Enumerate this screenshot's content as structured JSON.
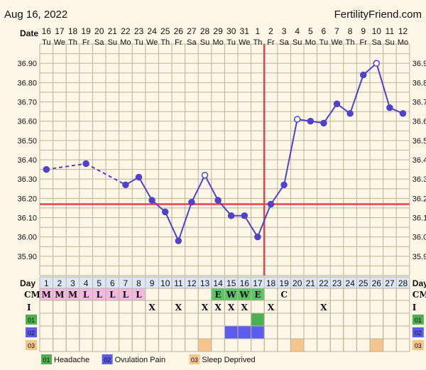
{
  "header": {
    "date": "Aug 16, 2022",
    "site": "FertilityFriend.com"
  },
  "row_labels": {
    "date": "Date",
    "day": "Day",
    "cm": "CM",
    "intercourse": "I"
  },
  "symptom_codes": [
    "01",
    "02",
    "03"
  ],
  "legend": [
    {
      "code": "01",
      "label": "Headache",
      "color": "#4caf50"
    },
    {
      "code": "02",
      "label": "Ovulation Pain",
      "color": "#5b5bf0"
    },
    {
      "code": "03",
      "label": "Sleep Deprived",
      "color": "#f6c48e"
    }
  ],
  "colors": {
    "background": "#fbf6e6",
    "grid": "#b9b49a",
    "line": "#5142c8",
    "coverline": "#e0454a",
    "menses": "#f2b8df",
    "egg_white": "#5cc567",
    "day_header": "#dce6f5"
  },
  "chart_data": {
    "type": "line",
    "title": "",
    "x_dates": [
      "16",
      "17",
      "18",
      "19",
      "20",
      "21",
      "22",
      "23",
      "24",
      "25",
      "26",
      "27",
      "28",
      "29",
      "30",
      "31",
      "1",
      "2",
      "3",
      "4",
      "5",
      "6",
      "7",
      "8",
      "9",
      "10",
      "11",
      "12"
    ],
    "x_weekdays": [
      "Tu",
      "We",
      "Th",
      "Fr",
      "Sa",
      "Su",
      "Mo",
      "Tu",
      "We",
      "Th",
      "Fr",
      "Sa",
      "Su",
      "Mo",
      "Tu",
      "We",
      "Th",
      "Fr",
      "Sa",
      "Su",
      "Mo",
      "Tu",
      "We",
      "Th",
      "Fr",
      "Sa",
      "Su",
      "Mo"
    ],
    "cycle_days": [
      1,
      2,
      3,
      4,
      5,
      6,
      7,
      8,
      9,
      10,
      11,
      12,
      13,
      14,
      15,
      16,
      17,
      18,
      19,
      20,
      21,
      22,
      23,
      24,
      25,
      26,
      27,
      28
    ],
    "ylim": [
      35.8,
      37.0
    ],
    "y_ticks": [
      "35.90",
      "36.00",
      "36.10",
      "36.20",
      "36.30",
      "36.40",
      "36.50",
      "36.60",
      "36.70",
      "36.80",
      "36.90"
    ],
    "temperatures": [
      36.35,
      null,
      null,
      36.38,
      null,
      null,
      36.27,
      36.31,
      36.19,
      36.13,
      35.98,
      36.18,
      36.32,
      36.19,
      36.11,
      36.11,
      36.0,
      36.17,
      36.27,
      36.61,
      36.6,
      36.59,
      36.69,
      36.64,
      36.84,
      36.9,
      36.67,
      36.64
    ],
    "open_points": [
      13,
      20,
      26
    ],
    "coverline": 36.17,
    "ovulation_day": 17,
    "cervical_mucus": [
      "M",
      "M",
      "M",
      "L",
      "L",
      "L",
      "L",
      "L",
      "",
      "",
      "",
      "",
      "",
      "E",
      "W",
      "W",
      "E",
      "",
      "C",
      "",
      "",
      "",
      "",
      "",
      "",
      "",
      "",
      ""
    ],
    "intercourse_days": [
      9,
      11,
      13,
      14,
      15,
      16,
      18,
      22
    ],
    "symptoms": {
      "01": [
        17
      ],
      "02": [
        15,
        16,
        17
      ],
      "03": [
        13,
        20,
        26
      ]
    }
  }
}
